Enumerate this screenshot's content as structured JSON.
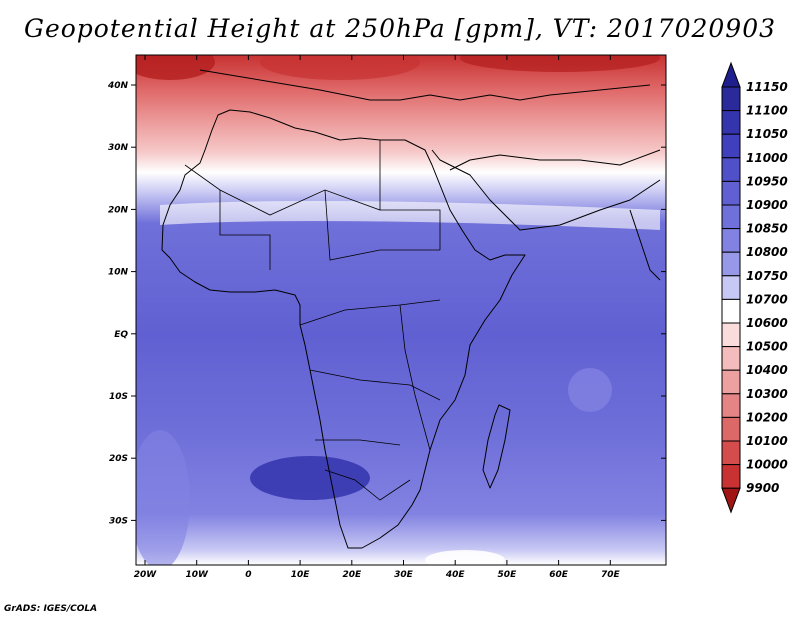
{
  "title": "Geopotential Height at 250hPa [gpm], VT: 2017020903",
  "credit": "GrADS: IGES/COLA",
  "lat_labels": [
    "40N",
    "30N",
    "20N",
    "10N",
    "EQ",
    "10S",
    "20S",
    "30S"
  ],
  "lon_labels": [
    "20W",
    "10W",
    "0",
    "10E",
    "20E",
    "30E",
    "40E",
    "50E",
    "60E",
    "70E"
  ],
  "colorbar": {
    "labels": [
      "11150",
      "11100",
      "11050",
      "11000",
      "10950",
      "10900",
      "10850",
      "10800",
      "10750",
      "10700",
      "10600",
      "10500",
      "10400",
      "10300",
      "10200",
      "10100",
      "10000",
      "9900"
    ],
    "colors": [
      "#2a2a9a",
      "#3434ad",
      "#4040be",
      "#5050c9",
      "#6060d2",
      "#7070da",
      "#8282e2",
      "#9898e9",
      "#c8c8f4",
      "#ffffff",
      "#fadcdc",
      "#f4bcbc",
      "#eca0a0",
      "#e48484",
      "#dc6868",
      "#d44c4c",
      "#c83232",
      "#b41e1e"
    ],
    "top_arrow_color": "#1e1e8c",
    "bottom_arrow_color": "#a01414"
  }
}
